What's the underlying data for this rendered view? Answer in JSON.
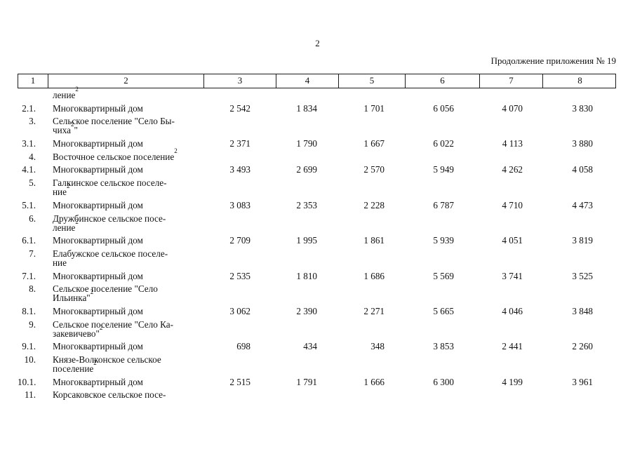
{
  "page": {
    "number": "2",
    "continuation_label": "Продолжение приложения № 19"
  },
  "table": {
    "header_cells": [
      "1",
      "2",
      "3",
      "4",
      "5",
      "6",
      "7",
      "8"
    ],
    "rows": [
      {
        "num": "",
        "lines": [
          {
            "text": "ление",
            "sup": "2",
            "after": ""
          }
        ],
        "values": []
      },
      {
        "num": "2.1.",
        "lines": [
          {
            "text": "Многоквартирный дом"
          }
        ],
        "values": [
          "2 542",
          "1 834",
          "1 701",
          "6 056",
          "4 070",
          "3 830"
        ]
      },
      {
        "num": "3.",
        "lines": [
          {
            "text": "Сельское поселение \"Село Бы-"
          },
          {
            "text": "чиха",
            "sup": "2",
            "after": "\""
          }
        ],
        "values": []
      },
      {
        "num": "3.1.",
        "lines": [
          {
            "text": "Многоквартирный дом"
          }
        ],
        "values": [
          "2 371",
          "1 790",
          "1 667",
          "6 022",
          "4 113",
          "3 880"
        ]
      },
      {
        "num": "4.",
        "lines": [
          {
            "text": "Восточное сельское поселение",
            "sup": "2",
            "after": ""
          }
        ],
        "values": []
      },
      {
        "num": "4.1.",
        "lines": [
          {
            "text": "Многоквартирный дом"
          }
        ],
        "values": [
          "3 493",
          "2 699",
          "2 570",
          "5 949",
          "4 262",
          "4 058"
        ]
      },
      {
        "num": "5.",
        "lines": [
          {
            "text": "Галкинское сельское поселе-"
          },
          {
            "text": "ние",
            "sup": "2",
            "after": ""
          }
        ],
        "values": []
      },
      {
        "num": "5.1.",
        "lines": [
          {
            "text": "Многоквартирный дом"
          }
        ],
        "values": [
          "3 083",
          "2 353",
          "2 228",
          "6 787",
          "4 710",
          "4 473"
        ]
      },
      {
        "num": "6.",
        "lines": [
          {
            "text": "Дружбинское сельское посе-"
          },
          {
            "text": "ление",
            "sup": "2",
            "after": ""
          }
        ],
        "values": []
      },
      {
        "num": "6.1.",
        "lines": [
          {
            "text": "Многоквартирный дом"
          }
        ],
        "values": [
          "2 709",
          "1 995",
          "1 861",
          "5 939",
          "4 051",
          "3 819"
        ]
      },
      {
        "num": "7.",
        "lines": [
          {
            "text": "Елабужское сельское поселе-"
          },
          {
            "text": "ние"
          }
        ],
        "values": []
      },
      {
        "num": "7.1.",
        "lines": [
          {
            "text": "Многоквартирный дом"
          }
        ],
        "values": [
          "2 535",
          "1 810",
          "1 686",
          "5 569",
          "3 741",
          "3 525"
        ]
      },
      {
        "num": "8.",
        "lines": [
          {
            "text": "Сельское поселение \"Село"
          },
          {
            "text": "Ильинка\"",
            "sup": "2",
            "after": ""
          }
        ],
        "values": []
      },
      {
        "num": "8.1.",
        "lines": [
          {
            "text": "Многоквартирный дом"
          }
        ],
        "values": [
          "3 062",
          "2 390",
          "2 271",
          "5 665",
          "4 046",
          "3 848"
        ]
      },
      {
        "num": "9.",
        "lines": [
          {
            "text": "Сельское поселение \"Село Ка-"
          },
          {
            "text": "закевичево\"",
            "sup": "2",
            "after": ""
          }
        ],
        "values": []
      },
      {
        "num": "9.1.",
        "lines": [
          {
            "text": "Многоквартирный дом"
          }
        ],
        "values": [
          "698",
          "434",
          "348",
          "3 853",
          "2 441",
          "2 260"
        ]
      },
      {
        "num": "10.",
        "lines": [
          {
            "text": "Князе-Волконское сельское"
          },
          {
            "text": "поселение",
            "sup": "2",
            "after": ""
          }
        ],
        "values": []
      },
      {
        "num": "10.1.",
        "lines": [
          {
            "text": "Многоквартирный дом"
          }
        ],
        "values": [
          "2 515",
          "1 791",
          "1 666",
          "6 300",
          "4 199",
          "3 961"
        ]
      },
      {
        "num": "11.",
        "lines": [
          {
            "text": "Корсаковское сельское посе-"
          }
        ],
        "values": []
      }
    ]
  }
}
